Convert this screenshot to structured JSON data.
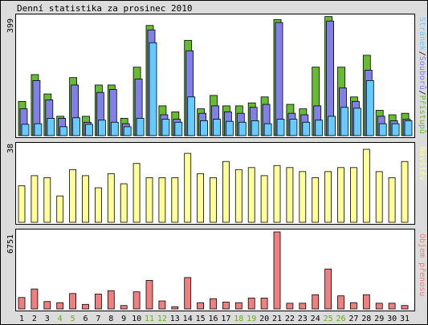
{
  "title": "Denní statistika za prosinec 2010",
  "colors": {
    "strank": "#66ccff",
    "souboru": "#8080e8",
    "pristupu": "#66bb33",
    "navstev": "#ffff99",
    "objem": "#f08080",
    "weekend_label": "#66aa22",
    "weekday_label": "#000000"
  },
  "chart_data": [
    {
      "type": "bar",
      "categories": [
        "1",
        "2",
        "3",
        "4",
        "5",
        "6",
        "7",
        "8",
        "9",
        "10",
        "11",
        "12",
        "13",
        "14",
        "15",
        "16",
        "17",
        "18",
        "19",
        "20",
        "21",
        "22",
        "23",
        "24",
        "25",
        "26",
        "27",
        "28",
        "29",
        "30",
        "31"
      ],
      "weekend_days": [
        "4",
        "5",
        "11",
        "12",
        "18",
        "19",
        "25",
        "26"
      ],
      "ymax_label": "399",
      "ylim": [
        0,
        399
      ],
      "series": [
        {
          "name": "Stránek",
          "values": [
            38,
            40,
            58,
            30,
            60,
            38,
            52,
            45,
            30,
            58,
            312,
            55,
            45,
            130,
            50,
            55,
            48,
            45,
            50,
            40,
            55,
            55,
            45,
            52,
            65,
            95,
            92,
            185,
            40,
            40,
            50
          ]
        },
        {
          "name": "Souborů",
          "values": [
            90,
            185,
            120,
            58,
            170,
            45,
            145,
            155,
            40,
            190,
            355,
            70,
            55,
            285,
            75,
            100,
            80,
            75,
            95,
            105,
            380,
            75,
            70,
            100,
            385,
            160,
            115,
            220,
            65,
            50,
            55
          ]
        },
        {
          "name": "Přístupů",
          "values": [
            115,
            205,
            140,
            65,
            195,
            65,
            170,
            170,
            58,
            230,
            370,
            100,
            80,
            320,
            90,
            135,
            100,
            100,
            110,
            130,
            390,
            105,
            90,
            230,
            400,
            230,
            130,
            270,
            85,
            70,
            75
          ]
        }
      ]
    },
    {
      "type": "bar",
      "categories": [
        "1",
        "2",
        "3",
        "4",
        "5",
        "6",
        "7",
        "8",
        "9",
        "10",
        "11",
        "12",
        "13",
        "14",
        "15",
        "16",
        "17",
        "18",
        "19",
        "20",
        "21",
        "22",
        "23",
        "24",
        "25",
        "26",
        "27",
        "28",
        "29",
        "30",
        "31"
      ],
      "ymax_label": "38",
      "ylim": [
        0,
        38
      ],
      "series": [
        {
          "name": "Návštěv",
          "values": [
            18,
            23,
            22,
            13,
            26,
            23,
            17,
            24,
            19,
            29,
            22,
            22,
            22,
            34,
            24,
            22,
            30,
            26,
            27,
            23,
            28,
            27,
            25,
            22,
            25,
            27,
            27,
            36,
            25,
            22,
            30
          ]
        }
      ]
    },
    {
      "type": "bar",
      "categories": [
        "1",
        "2",
        "3",
        "4",
        "5",
        "6",
        "7",
        "8",
        "9",
        "10",
        "11",
        "12",
        "13",
        "14",
        "15",
        "16",
        "17",
        "18",
        "19",
        "20",
        "21",
        "22",
        "23",
        "24",
        "25",
        "26",
        "27",
        "28",
        "29",
        "30",
        "31"
      ],
      "ymax_label": "6751",
      "ylim": [
        0,
        6751
      ],
      "series": [
        {
          "name": "Objem přenosu",
          "values": [
            1000,
            1750,
            650,
            550,
            1350,
            400,
            1300,
            1600,
            300,
            1500,
            2500,
            700,
            200,
            2750,
            550,
            900,
            600,
            550,
            950,
            950,
            6751,
            500,
            500,
            1250,
            3500,
            1150,
            550,
            1250,
            500,
            500,
            300
          ]
        }
      ]
    }
  ]
}
